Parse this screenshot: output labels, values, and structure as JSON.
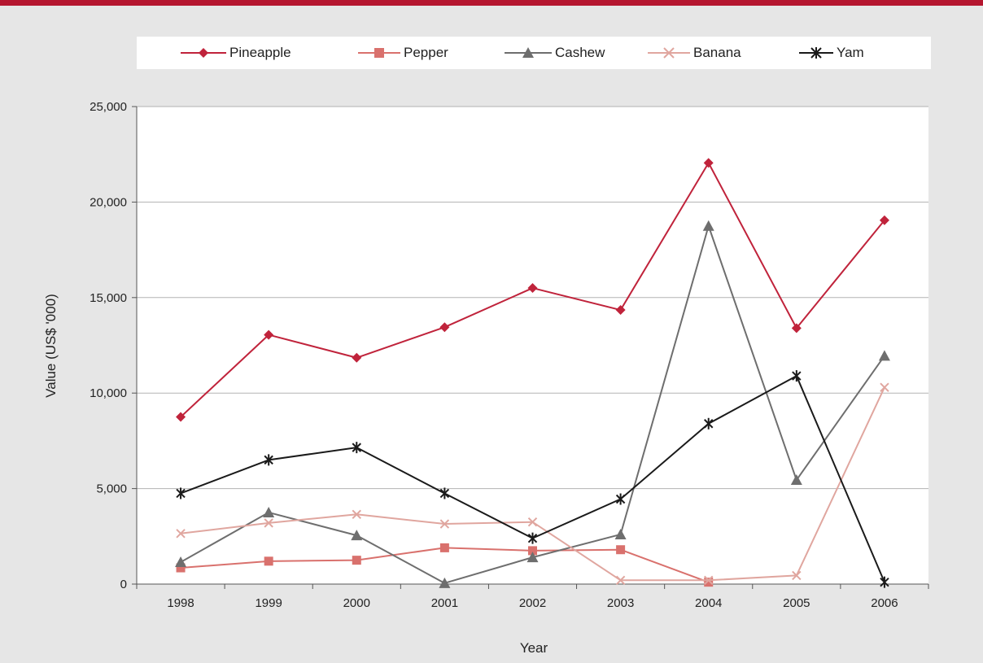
{
  "colors": {
    "pineapple": "#c0233b",
    "pepper": "#d9716d",
    "cashew": "#6e6e6e",
    "banana": "#e0a69f",
    "yam": "#1a1a1a",
    "header": "#b5162f"
  },
  "chart_data": {
    "type": "line",
    "title": "",
    "xlabel": "Year",
    "ylabel": "Value (US$ '000)",
    "categories": [
      "1998",
      "1999",
      "2000",
      "2001",
      "2002",
      "2003",
      "2004",
      "2005",
      "2006"
    ],
    "ylim": [
      0,
      25000
    ],
    "yticks": [
      "0",
      "5,000",
      "10,000",
      "15,000",
      "20,000",
      "25,000"
    ],
    "grid": true,
    "legend_position": "top",
    "series": [
      {
        "name": "Pineapple",
        "marker": "diamond",
        "values": [
          8750,
          13050,
          11850,
          13450,
          15500,
          14350,
          22050,
          13400,
          19050
        ]
      },
      {
        "name": "Pepper",
        "marker": "square",
        "values": [
          850,
          1200,
          1250,
          1900,
          1750,
          1800,
          100,
          null,
          null
        ]
      },
      {
        "name": "Cashew",
        "marker": "triangle",
        "values": [
          1150,
          3750,
          2550,
          50,
          1400,
          2600,
          18750,
          5450,
          11950
        ]
      },
      {
        "name": "Banana",
        "marker": "x",
        "values": [
          2650,
          3200,
          3650,
          3150,
          3250,
          200,
          200,
          450,
          10300
        ]
      },
      {
        "name": "Yam",
        "marker": "star",
        "values": [
          4750,
          6500,
          7150,
          4750,
          2400,
          4450,
          8400,
          10900,
          100
        ]
      }
    ]
  }
}
